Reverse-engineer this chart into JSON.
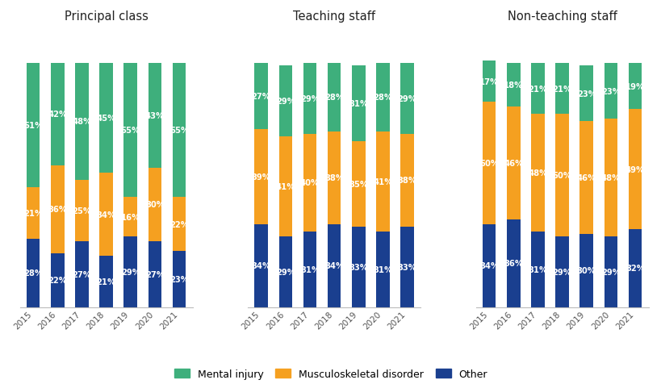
{
  "years": [
    "2015",
    "2016",
    "2017",
    "2018",
    "2019",
    "2020",
    "2021"
  ],
  "groups": [
    {
      "title": "Principal class",
      "other": [
        28,
        22,
        27,
        21,
        29,
        27,
        23
      ],
      "musculo": [
        21,
        36,
        25,
        34,
        16,
        30,
        22
      ],
      "mental": [
        51,
        42,
        48,
        45,
        55,
        43,
        55
      ]
    },
    {
      "title": "Teaching staff",
      "other": [
        34,
        29,
        31,
        34,
        33,
        31,
        33
      ],
      "musculo": [
        39,
        41,
        40,
        38,
        35,
        41,
        38
      ],
      "mental": [
        27,
        29,
        29,
        28,
        31,
        28,
        29
      ]
    },
    {
      "title": "Non-teaching staff",
      "other": [
        34,
        36,
        31,
        29,
        30,
        29,
        32
      ],
      "musculo": [
        50,
        46,
        48,
        50,
        46,
        48,
        49
      ],
      "mental": [
        17,
        18,
        21,
        21,
        23,
        23,
        19
      ]
    }
  ],
  "colors": {
    "mental": "#3EAF7C",
    "musculo": "#F5A020",
    "other": "#1A3F8F"
  },
  "legend": [
    {
      "label": "Mental injury",
      "color": "#3EAF7C"
    },
    {
      "label": "Musculoskeletal disorder",
      "color": "#F5A020"
    },
    {
      "label": "Other",
      "color": "#1A3F8F"
    }
  ],
  "bar_width": 0.55,
  "label_fontsize": 7.2,
  "title_fontsize": 10.5,
  "tick_fontsize": 7.5,
  "legend_fontsize": 9
}
